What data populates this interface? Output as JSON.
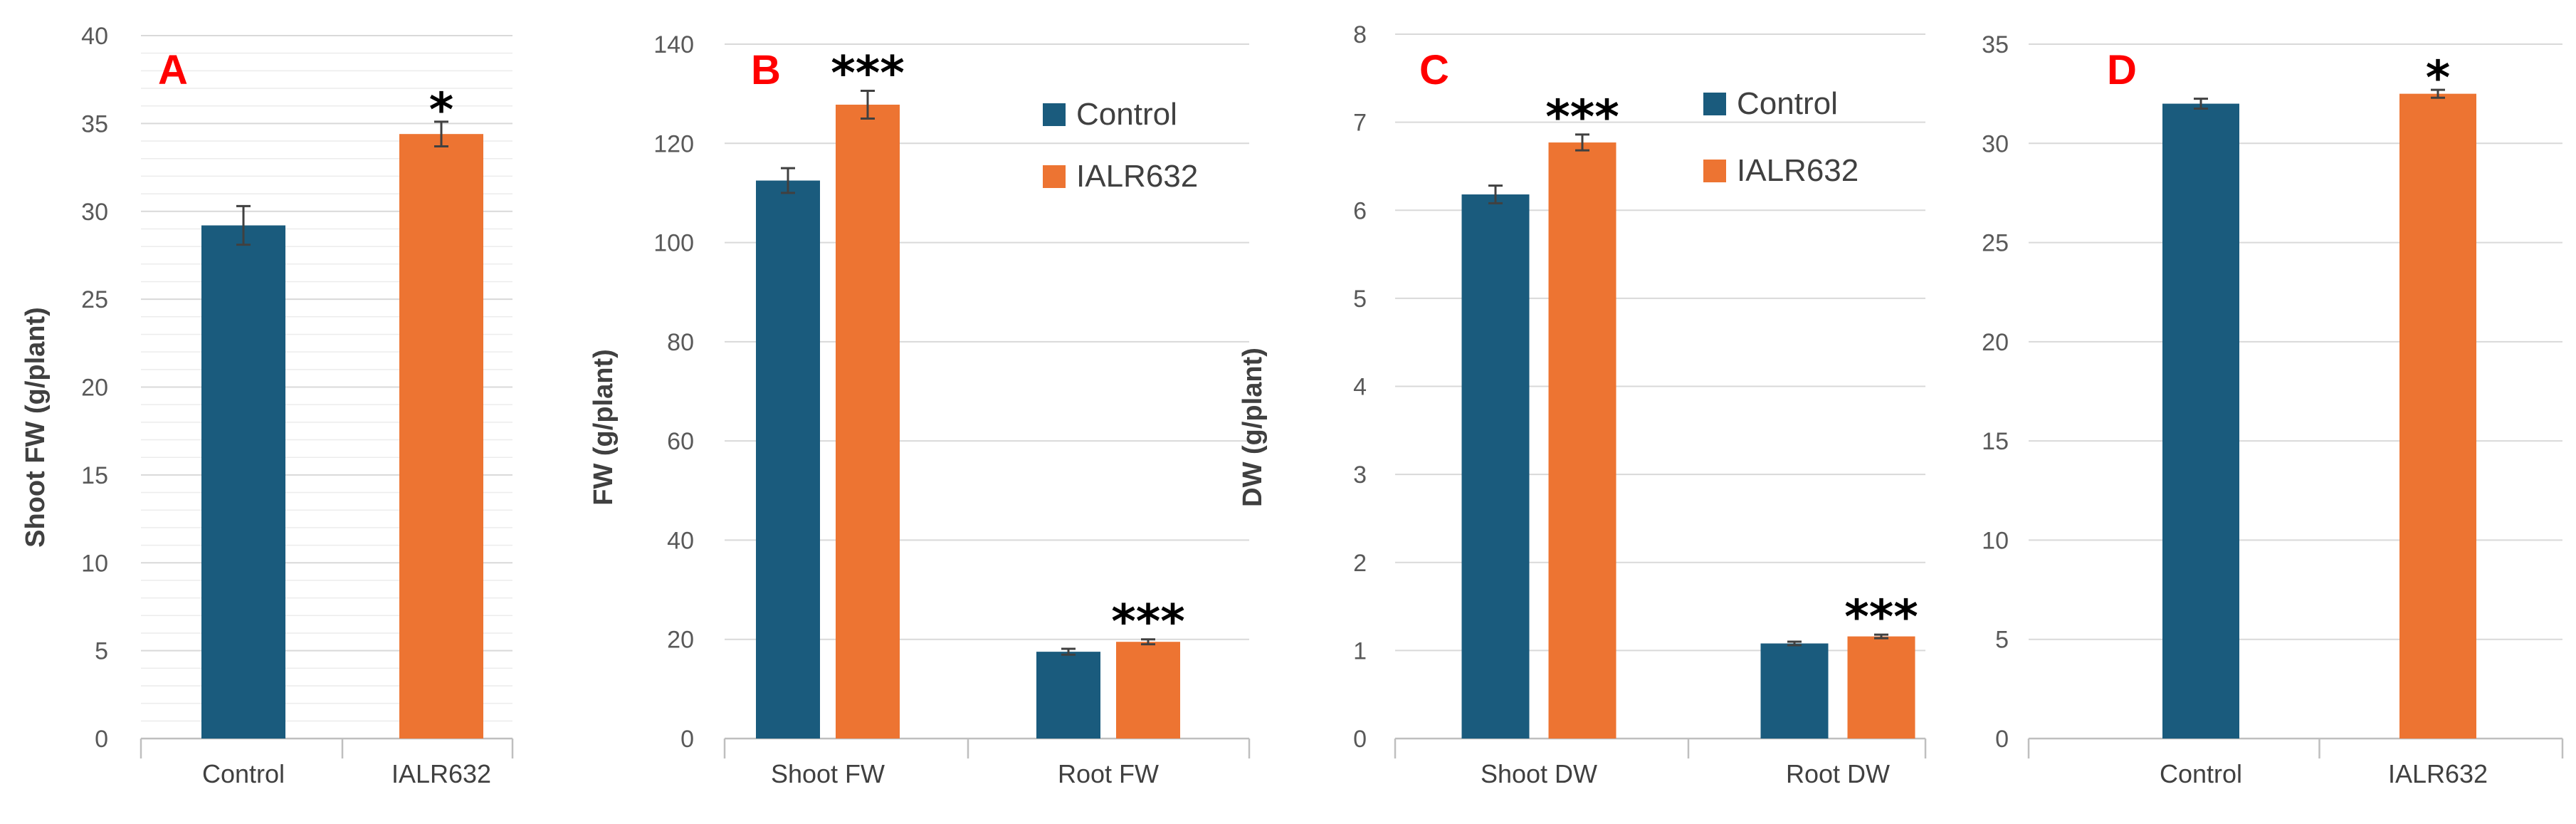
{
  "colors": {
    "control": "#1a5b7d",
    "ialr632": "#ed7432"
  },
  "chart_data": [
    {
      "panel_label": "A",
      "type": "bar",
      "categories": [
        "Control",
        "IALR632"
      ],
      "values": [
        29.2,
        34.4
      ],
      "errors": [
        1.1,
        0.7
      ],
      "significance": [
        "",
        "*"
      ],
      "xlabel": "",
      "ylabel": "Shoot FW (g/plant)",
      "ylim": [
        0,
        40
      ],
      "ytick_step": 5,
      "yticks": [
        "0",
        "5",
        "10",
        "15",
        "20",
        "25",
        "30",
        "35",
        "40"
      ],
      "minor_grid": true,
      "legend": null
    },
    {
      "panel_label": "B",
      "type": "bar",
      "categories": [
        "Shoot FW",
        "Root FW"
      ],
      "series": [
        {
          "name": "Control",
          "values": [
            112.5,
            17.5
          ],
          "errors": [
            2.5,
            0.6
          ]
        },
        {
          "name": "IALR632",
          "values": [
            127.8,
            19.5
          ],
          "errors": [
            2.8,
            0.5
          ]
        }
      ],
      "significance": [
        "***",
        "***"
      ],
      "xlabel": "",
      "ylabel": "FW (g/plant)",
      "ylim": [
        0,
        140
      ],
      "ytick_step": 20,
      "yticks": [
        "0",
        "20",
        "40",
        "60",
        "80",
        "100",
        "120",
        "140"
      ],
      "legend": {
        "placement": "top-right",
        "items": [
          "Control",
          "IALR632"
        ]
      }
    },
    {
      "panel_label": "C",
      "type": "bar",
      "categories": [
        "Shoot DW",
        "Root DW"
      ],
      "series": [
        {
          "name": "Control",
          "values": [
            6.18,
            1.08
          ],
          "errors": [
            0.1,
            0.02
          ]
        },
        {
          "name": "IALR632",
          "values": [
            6.77,
            1.16
          ],
          "errors": [
            0.09,
            0.02
          ]
        }
      ],
      "significance": [
        "***",
        "***"
      ],
      "xlabel": "",
      "ylabel": "DW (g/plant)",
      "ylim": [
        0,
        8
      ],
      "ytick_step": 1,
      "yticks": [
        "0",
        "1",
        "2",
        "3",
        "4",
        "5",
        "6",
        "7",
        "8"
      ],
      "legend": {
        "placement": "top-right",
        "items": [
          "Control",
          "IALR632"
        ]
      }
    },
    {
      "panel_label": "D",
      "type": "bar",
      "categories": [
        "Control",
        "IALR632"
      ],
      "values": [
        32.0,
        32.5
      ],
      "errors": [
        0.25,
        0.2
      ],
      "significance": [
        "",
        "*"
      ],
      "xlabel": "",
      "ylabel": "",
      "ylim": [
        0,
        35
      ],
      "ytick_step": 5,
      "yticks": [
        "0",
        "5",
        "10",
        "15",
        "20",
        "25",
        "30",
        "35"
      ],
      "legend": null
    }
  ]
}
